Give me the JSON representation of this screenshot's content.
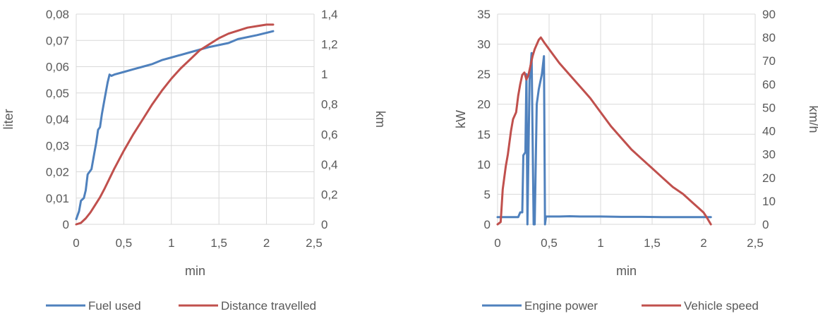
{
  "chart_data": [
    {
      "type": "line",
      "xlabel": "min",
      "ylabel": "liter",
      "y2label": "km",
      "xlim": [
        0,
        2.5
      ],
      "xticks": [
        "0",
        "0,5",
        "1",
        "1,5",
        "2",
        "2,5"
      ],
      "ylim": [
        0,
        0.08
      ],
      "yticks": [
        "0",
        "0,01",
        "0,02",
        "0,03",
        "0,04",
        "0,05",
        "0,06",
        "0,07",
        "0,08"
      ],
      "y2lim": [
        0,
        1.4
      ],
      "y2ticks": [
        "0",
        "0,2",
        "0,4",
        "0,6",
        "0,8",
        "1",
        "1,2",
        "1,4"
      ],
      "grid": true,
      "legend_position": "bottom",
      "series": [
        {
          "name": "Fuel used",
          "color": "#4f81bd",
          "axis": "left",
          "x": [
            0,
            0.03,
            0.05,
            0.08,
            0.1,
            0.12,
            0.14,
            0.16,
            0.19,
            0.21,
            0.23,
            0.25,
            0.27,
            0.3,
            0.33,
            0.35,
            0.37,
            0.4,
            0.5,
            0.6,
            0.7,
            0.8,
            0.9,
            1.0,
            1.2,
            1.4,
            1.6,
            1.7,
            1.9,
            2.07
          ],
          "y": [
            0.002,
            0.005,
            0.009,
            0.01,
            0.013,
            0.019,
            0.02,
            0.021,
            0.027,
            0.031,
            0.036,
            0.037,
            0.042,
            0.048,
            0.054,
            0.057,
            0.0565,
            0.057,
            0.058,
            0.059,
            0.06,
            0.061,
            0.0625,
            0.0635,
            0.0655,
            0.0675,
            0.069,
            0.0705,
            0.072,
            0.0735
          ]
        },
        {
          "name": "Distance travelled",
          "color": "#c0504d",
          "axis": "right",
          "x": [
            0,
            0.05,
            0.1,
            0.15,
            0.2,
            0.25,
            0.3,
            0.4,
            0.5,
            0.6,
            0.7,
            0.8,
            0.9,
            1.0,
            1.1,
            1.2,
            1.3,
            1.4,
            1.5,
            1.6,
            1.7,
            1.8,
            1.9,
            2.0,
            2.07
          ],
          "y": [
            0,
            0.01,
            0.04,
            0.08,
            0.13,
            0.18,
            0.24,
            0.37,
            0.49,
            0.6,
            0.7,
            0.8,
            0.89,
            0.97,
            1.04,
            1.1,
            1.16,
            1.2,
            1.24,
            1.27,
            1.29,
            1.31,
            1.32,
            1.33,
            1.33
          ]
        }
      ]
    },
    {
      "type": "line",
      "xlabel": "min",
      "ylabel": "kW",
      "y2label": "km/h",
      "xlim": [
        0,
        2.5
      ],
      "xticks": [
        "0",
        "0,5",
        "1",
        "1,5",
        "2",
        "2,5"
      ],
      "ylim": [
        0,
        35
      ],
      "yticks": [
        "0",
        "5",
        "10",
        "15",
        "20",
        "25",
        "30",
        "35"
      ],
      "y2lim": [
        0,
        90
      ],
      "y2ticks": [
        "0",
        "10",
        "20",
        "30",
        "40",
        "50",
        "60",
        "70",
        "80",
        "90"
      ],
      "grid": true,
      "legend_position": "bottom",
      "series": [
        {
          "name": "Engine power",
          "color": "#4f81bd",
          "axis": "left",
          "x": [
            0,
            0.1,
            0.2,
            0.22,
            0.24,
            0.25,
            0.27,
            0.28,
            0.29,
            0.31,
            0.33,
            0.35,
            0.36,
            0.38,
            0.4,
            0.43,
            0.45,
            0.46,
            0.47,
            0.48,
            0.5,
            0.6,
            0.7,
            0.8,
            1.0,
            1.2,
            1.4,
            1.6,
            1.8,
            2.0,
            2.07
          ],
          "y": [
            1.2,
            1.2,
            1.2,
            2,
            2,
            11.5,
            12,
            25,
            0,
            24,
            28.5,
            0,
            0,
            20,
            22.5,
            25,
            28,
            0,
            1.3,
            1.3,
            1.3,
            1.3,
            1.35,
            1.3,
            1.3,
            1.25,
            1.25,
            1.2,
            1.2,
            1.2,
            1.2
          ]
        },
        {
          "name": "Vehicle speed",
          "color": "#c0504d",
          "axis": "right",
          "x": [
            0,
            0.03,
            0.05,
            0.08,
            0.1,
            0.13,
            0.15,
            0.18,
            0.2,
            0.22,
            0.24,
            0.26,
            0.28,
            0.3,
            0.32,
            0.34,
            0.36,
            0.38,
            0.4,
            0.42,
            0.45,
            0.5,
            0.6,
            0.7,
            0.8,
            0.9,
            1.0,
            1.1,
            1.2,
            1.3,
            1.4,
            1.5,
            1.6,
            1.7,
            1.8,
            1.9,
            1.95,
            2.0,
            2.03,
            2.07
          ],
          "y": [
            0,
            1,
            15,
            25,
            30,
            40,
            45,
            48,
            55,
            60,
            64,
            65,
            62,
            64,
            68,
            72,
            75,
            77,
            79,
            80,
            78,
            75,
            69,
            64,
            59,
            54,
            48,
            42,
            37,
            32,
            28,
            24,
            20,
            16,
            13,
            9,
            7,
            5,
            3,
            0
          ]
        }
      ]
    }
  ]
}
